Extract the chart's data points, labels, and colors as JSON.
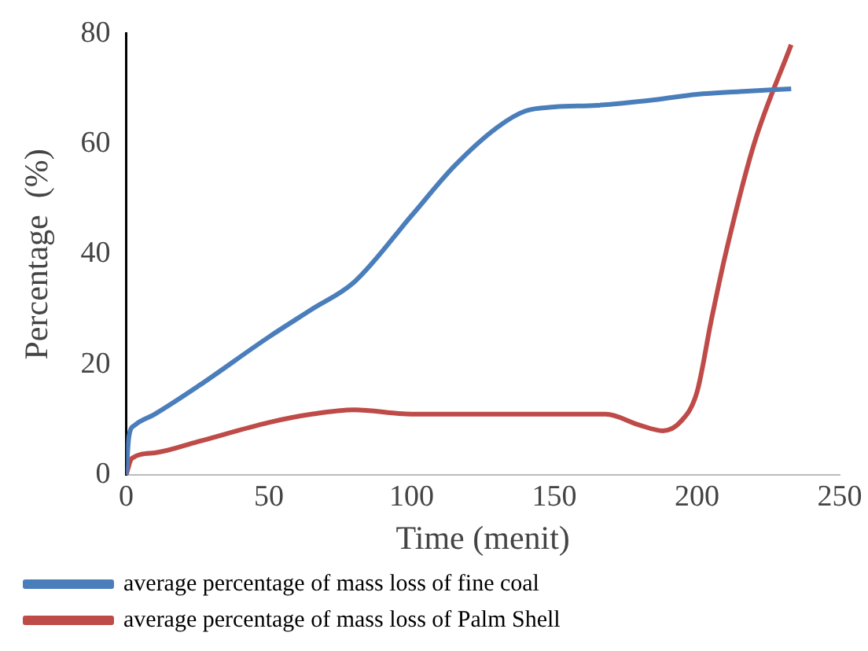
{
  "chart_data": {
    "type": "line",
    "xlabel": "Time (menit)",
    "ylabel": "Percentage  (%)",
    "xlim": [
      0,
      250
    ],
    "xticks": [
      0,
      50,
      100,
      150,
      200,
      250
    ],
    "ylim": [
      0,
      80
    ],
    "yticks": [
      0,
      20,
      40,
      60,
      80
    ],
    "grid": false,
    "legend": "bottom",
    "marker": "none",
    "line_style": "solid",
    "series": [
      {
        "name": "average percentage of mass loss of fine coal",
        "color": "#4a7ebb",
        "x": [
          0,
          1,
          3,
          10,
          25,
          50,
          65,
          80,
          100,
          115,
          130,
          140,
          150,
          165,
          185,
          200,
          215,
          233
        ],
        "values": [
          0,
          7,
          9,
          11,
          16,
          25,
          30,
          35,
          47,
          56,
          63,
          66,
          66.7,
          67,
          68,
          69,
          69.5,
          70
        ]
      },
      {
        "name": "average percentage of mass loss of Palm Shell",
        "color": "#be4b48",
        "x": [
          0,
          2,
          10,
          25,
          50,
          65,
          80,
          100,
          125,
          150,
          168,
          180,
          188,
          194,
          200,
          205,
          210,
          220,
          233
        ],
        "values": [
          0,
          3,
          4,
          6,
          9.5,
          11,
          11.8,
          11,
          11,
          11,
          11,
          9,
          8,
          9.5,
          15,
          28,
          40,
          60,
          78
        ]
      }
    ]
  }
}
